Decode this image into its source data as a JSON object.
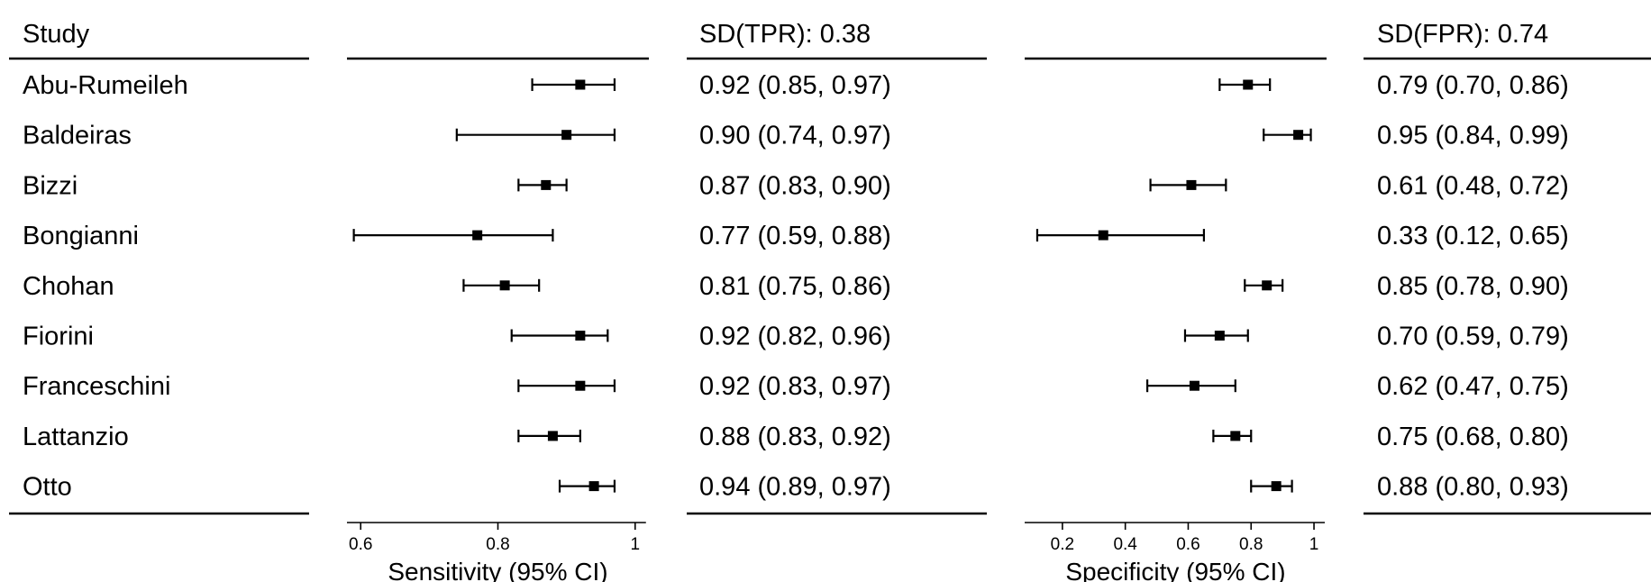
{
  "header": {
    "study_label": "Study",
    "sens_sd_label": "SD(TPR): 0.38",
    "spec_sd_label": "SD(FPR): 0.74"
  },
  "chart_data": [
    {
      "type": "forest",
      "xlabel": "Sensitivity (95% CI)",
      "xlim": [
        0.58,
        1.02
      ],
      "ticks": [
        0.6,
        0.8,
        1
      ],
      "tick_labels": [
        "0.6",
        "0.8",
        "1"
      ],
      "categories": [
        "Abu-Rumeileh",
        "Baldeiras",
        "Bizzi",
        "Bongianni",
        "Chohan",
        "Fiorini",
        "Franceschini",
        "Lattanzio",
        "Otto"
      ],
      "estimates": [
        0.92,
        0.9,
        0.87,
        0.77,
        0.81,
        0.92,
        0.92,
        0.88,
        0.94
      ],
      "lower": [
        0.85,
        0.74,
        0.83,
        0.59,
        0.75,
        0.82,
        0.83,
        0.83,
        0.89
      ],
      "upper": [
        0.97,
        0.97,
        0.9,
        0.88,
        0.86,
        0.96,
        0.97,
        0.92,
        0.97
      ],
      "labels": [
        "0.92 (0.85, 0.97)",
        "0.90 (0.74, 0.97)",
        "0.87 (0.83, 0.90)",
        "0.77 (0.59, 0.88)",
        "0.81 (0.75, 0.86)",
        "0.92 (0.82, 0.96)",
        "0.92 (0.83, 0.97)",
        "0.88 (0.83, 0.92)",
        "0.94 (0.89, 0.97)"
      ]
    },
    {
      "type": "forest",
      "xlabel": "Specificity (95% CI)",
      "xlim": [
        0.08,
        1.04
      ],
      "ticks": [
        0.2,
        0.4,
        0.6,
        0.8,
        1
      ],
      "tick_labels": [
        "0.2",
        "0.4",
        "0.6",
        "0.8",
        "1"
      ],
      "categories": [
        "Abu-Rumeileh",
        "Baldeiras",
        "Bizzi",
        "Bongianni",
        "Chohan",
        "Fiorini",
        "Franceschini",
        "Lattanzio",
        "Otto"
      ],
      "estimates": [
        0.79,
        0.95,
        0.61,
        0.33,
        0.85,
        0.7,
        0.62,
        0.75,
        0.88
      ],
      "lower": [
        0.7,
        0.84,
        0.48,
        0.12,
        0.78,
        0.59,
        0.47,
        0.68,
        0.8
      ],
      "upper": [
        0.86,
        0.99,
        0.72,
        0.65,
        0.9,
        0.79,
        0.75,
        0.8,
        0.93
      ],
      "labels": [
        "0.79 (0.70, 0.86)",
        "0.95 (0.84, 0.99)",
        "0.61 (0.48, 0.72)",
        "0.33 (0.12, 0.65)",
        "0.85 (0.78, 0.90)",
        "0.70 (0.59, 0.79)",
        "0.62 (0.47, 0.75)",
        "0.75 (0.68, 0.80)",
        "0.88 (0.80, 0.93)"
      ]
    }
  ]
}
